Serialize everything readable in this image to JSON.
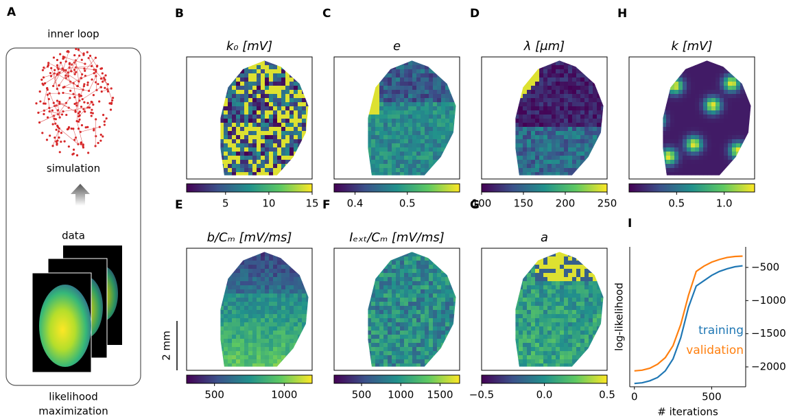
{
  "figure": {
    "label": "A",
    "inner_loop": "inner loop",
    "simulation": "simulation",
    "data": "data",
    "likelihood": "likelihood",
    "maximization": "maximization",
    "scale_bar": "2 mm"
  },
  "chart_data": [
    {
      "type": "heatmap",
      "label": "B",
      "title": "k₀ [mV]",
      "clim": [
        0.5,
        15
      ],
      "cticks": [
        5,
        10,
        15
      ]
    },
    {
      "type": "heatmap",
      "label": "C",
      "title": "e",
      "clim": [
        0.36,
        0.6
      ],
      "cticks": [
        0.4,
        0.5
      ]
    },
    {
      "type": "heatmap",
      "label": "D",
      "title": "λ [μm]",
      "clim": [
        100,
        250
      ],
      "cticks": [
        100,
        150,
        200,
        250
      ]
    },
    {
      "type": "heatmap",
      "label": "H",
      "title": "k [mV]",
      "clim": [
        0,
        1.32
      ],
      "cticks": [
        0.5,
        {
          "value": 1,
          "label": "1.0"
        }
      ]
    },
    {
      "type": "heatmap",
      "label": "E",
      "title": "b/Cₘ [mV/ms]",
      "clim": [
        300,
        1200
      ],
      "cticks": [
        500,
        1000
      ]
    },
    {
      "type": "heatmap",
      "label": "F",
      "title": "Iₑₓₜ/Cₘ [mV/ms]",
      "clim": [
        150,
        1750
      ],
      "cticks": [
        500,
        1000,
        1500
      ]
    },
    {
      "type": "heatmap",
      "label": "G",
      "title": "a",
      "clim": [
        -0.5,
        0.5
      ],
      "cticks": [
        {
          "value": -0.5,
          "label": "−0.5"
        },
        {
          "value": 0,
          "label": "0.0"
        },
        0.5
      ]
    },
    {
      "type": "line",
      "label": "I",
      "xlabel": "# iterations",
      "ylabel": "log-likelihood",
      "x": [
        0,
        50,
        100,
        150,
        200,
        250,
        300,
        350,
        400,
        450,
        500,
        550,
        600,
        650,
        700
      ],
      "series": [
        {
          "name": "training",
          "color": "#1f77b4",
          "values": [
            -2250,
            -2240,
            -2210,
            -2160,
            -2060,
            -1880,
            -1560,
            -1100,
            -780,
            -700,
            -620,
            -560,
            -520,
            -490,
            -475
          ]
        },
        {
          "name": "validation",
          "color": "#ff7f0e",
          "values": [
            -2060,
            -2050,
            -2020,
            -1960,
            -1860,
            -1680,
            -1360,
            -920,
            -560,
            -480,
            -420,
            -380,
            -350,
            -335,
            -330
          ]
        }
      ],
      "xlim": [
        -30,
        720
      ],
      "xticks": [
        0,
        500
      ],
      "ylim": [
        -2300,
        -190
      ],
      "yticks": [
        {
          "value": -500,
          "label": "−500"
        },
        {
          "value": -1000,
          "label": "−1000"
        },
        {
          "value": -1500,
          "label": "−1500"
        },
        {
          "value": -2000,
          "label": "−2000"
        }
      ]
    }
  ]
}
